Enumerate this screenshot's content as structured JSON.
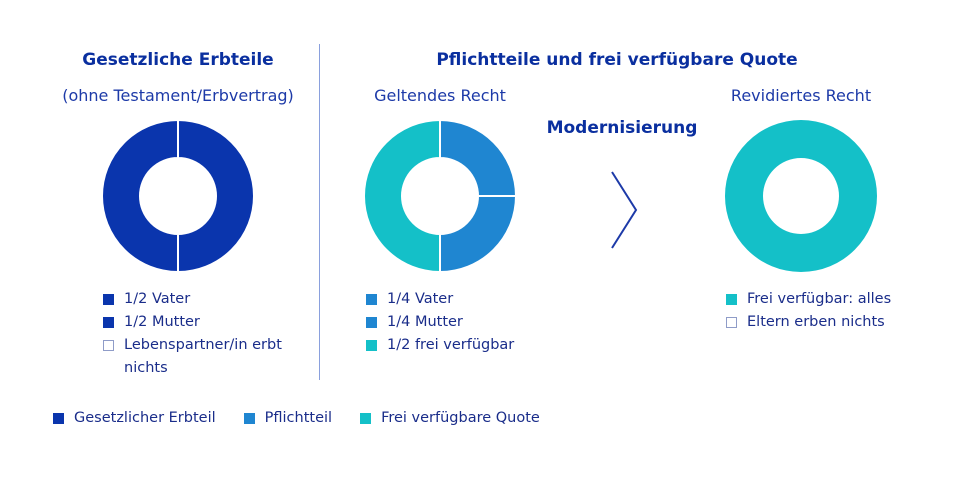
{
  "colors": {
    "dark_blue": "#0a35ad",
    "mid_blue": "#1f86d1",
    "teal": "#14c0c8",
    "title_blue": "#0a2f9f"
  },
  "left": {
    "title": "Gesetzliche Erbteile",
    "subtitle": "(ohne Testament/Erbvertrag)",
    "legend": [
      "1/2 Vater",
      "1/2 Mutter",
      "Lebenspartner/in erbt nichts"
    ]
  },
  "right": {
    "title": "Pflichtteile und frei verfügbare Quote",
    "current_label": "Geltendes Recht",
    "arrow_label": "Modernisierung",
    "revised_label": "Revidiertes Recht",
    "current_legend": [
      "1/4 Vater",
      "1/4 Mutter",
      "1/2 frei verfügbar"
    ],
    "revised_legend": [
      "Frei verfügbar: alles",
      "Eltern erben nichts"
    ]
  },
  "bottom_legend": [
    "Gesetzlicher Erbteil",
    "Pflichtteil",
    "Frei verfügbare Quote"
  ],
  "chart_data": [
    {
      "type": "pie",
      "title": "Gesetzliche Erbteile",
      "subtitle": "(ohne Testament/Erbvertrag)",
      "slices": [
        {
          "label": "1/2 Vater",
          "value": 0.5,
          "color": "#0a35ad"
        },
        {
          "label": "1/2 Mutter",
          "value": 0.5,
          "color": "#0a35ad"
        }
      ]
    },
    {
      "type": "pie",
      "title": "Geltendes Recht",
      "slices": [
        {
          "label": "1/4 Vater",
          "value": 0.25,
          "color": "#1f86d1"
        },
        {
          "label": "1/4 Mutter",
          "value": 0.25,
          "color": "#1f86d1"
        },
        {
          "label": "1/2 frei verfügbar",
          "value": 0.5,
          "color": "#14c0c8"
        }
      ]
    },
    {
      "type": "pie",
      "title": "Revidiertes Recht",
      "slices": [
        {
          "label": "Frei verfügbar: alles",
          "value": 1.0,
          "color": "#14c0c8"
        }
      ]
    }
  ]
}
